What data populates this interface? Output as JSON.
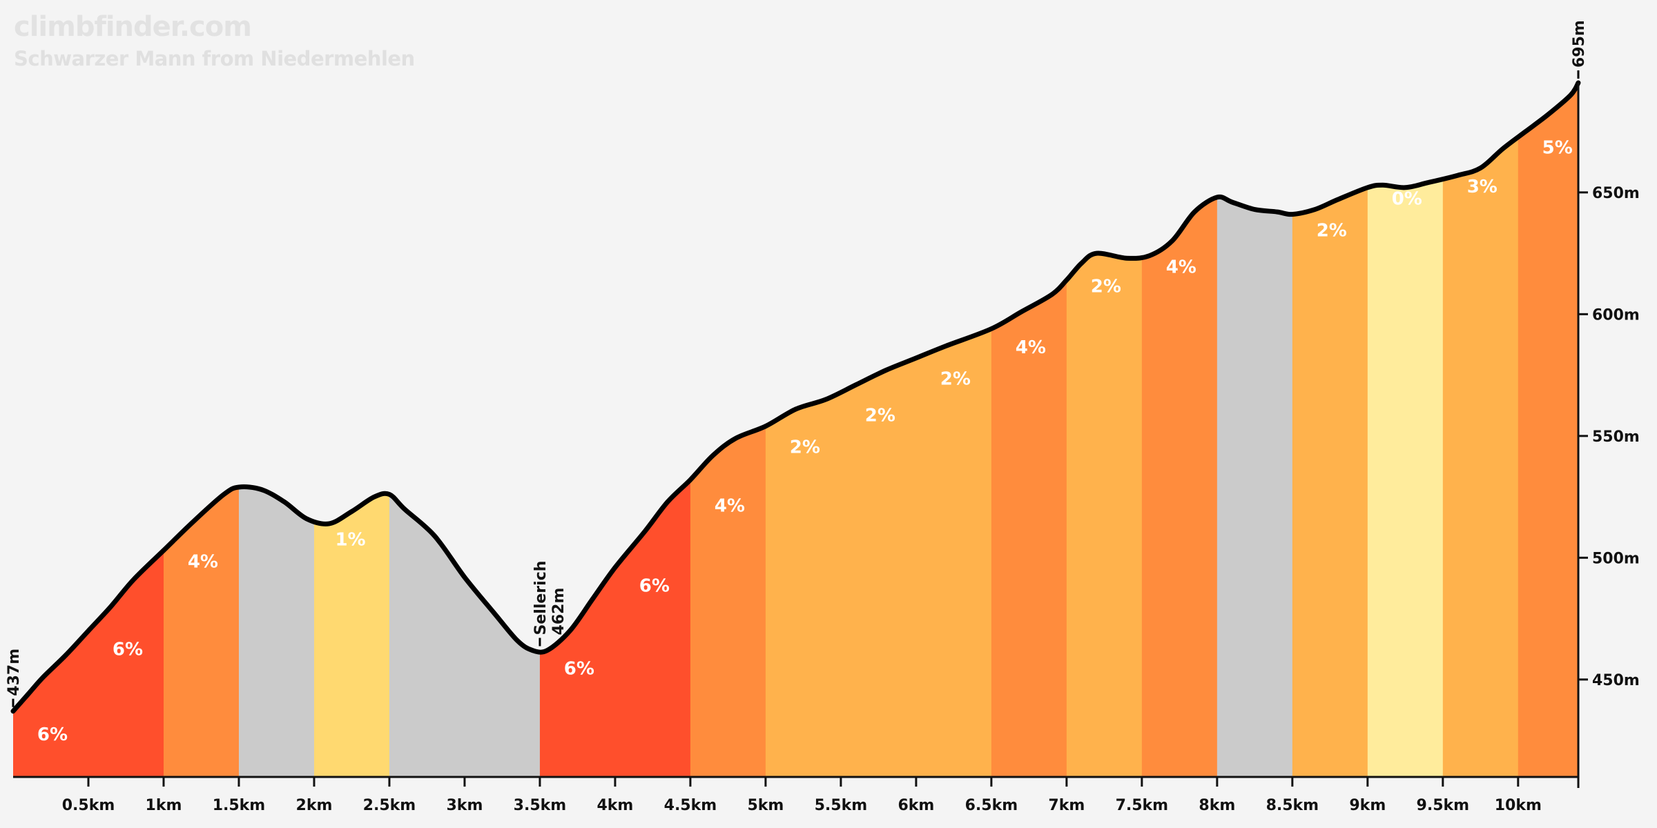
{
  "header": {
    "brand": "climbfinder.com",
    "subtitle": "Schwarzer Mann from Niedermehlen"
  },
  "chart_data": {
    "type": "area",
    "title": "Schwarzer Mann from Niedermehlen",
    "xlabel": "",
    "ylabel": "",
    "x_unit": "km",
    "y_unit": "m",
    "xlim": [
      0,
      10.4
    ],
    "ylim": [
      410,
      712
    ],
    "x_ticks": [
      {
        "value": 0.5,
        "label": "0.5km"
      },
      {
        "value": 1,
        "label": "1km"
      },
      {
        "value": 1.5,
        "label": "1.5km"
      },
      {
        "value": 2,
        "label": "2km"
      },
      {
        "value": 2.5,
        "label": "2.5km"
      },
      {
        "value": 3,
        "label": "3km"
      },
      {
        "value": 3.5,
        "label": "3.5km"
      },
      {
        "value": 4,
        "label": "4km"
      },
      {
        "value": 4.5,
        "label": "4.5km"
      },
      {
        "value": 5,
        "label": "5km"
      },
      {
        "value": 5.5,
        "label": "5.5km"
      },
      {
        "value": 6,
        "label": "6km"
      },
      {
        "value": 6.5,
        "label": "6.5km"
      },
      {
        "value": 7,
        "label": "7km"
      },
      {
        "value": 7.5,
        "label": "7.5km"
      },
      {
        "value": 8,
        "label": "8km"
      },
      {
        "value": 8.5,
        "label": "8.5km"
      },
      {
        "value": 9,
        "label": "9km"
      },
      {
        "value": 9.5,
        "label": "9.5km"
      },
      {
        "value": 10,
        "label": "10km"
      }
    ],
    "y_ticks": [
      {
        "value": 450,
        "label": "450m"
      },
      {
        "value": 500,
        "label": "500m"
      },
      {
        "value": 550,
        "label": "550m"
      },
      {
        "value": 600,
        "label": "600m"
      },
      {
        "value": 650,
        "label": "650m"
      }
    ],
    "profile": [
      [
        0,
        437
      ],
      [
        0.1,
        444
      ],
      [
        0.2,
        451
      ],
      [
        0.35,
        460
      ],
      [
        0.5,
        470
      ],
      [
        0.65,
        480
      ],
      [
        0.8,
        491
      ],
      [
        1,
        503
      ],
      [
        1.2,
        515
      ],
      [
        1.4,
        526
      ],
      [
        1.5,
        529
      ],
      [
        1.65,
        528
      ],
      [
        1.8,
        523
      ],
      [
        1.95,
        516
      ],
      [
        2.1,
        514
      ],
      [
        2.25,
        519
      ],
      [
        2.4,
        525
      ],
      [
        2.5,
        526
      ],
      [
        2.6,
        520
      ],
      [
        2.8,
        509
      ],
      [
        3.0,
        492
      ],
      [
        3.2,
        477
      ],
      [
        3.35,
        466
      ],
      [
        3.45,
        462
      ],
      [
        3.55,
        462
      ],
      [
        3.7,
        470
      ],
      [
        3.85,
        483
      ],
      [
        4.0,
        496
      ],
      [
        4.2,
        511
      ],
      [
        4.35,
        523
      ],
      [
        4.5,
        532
      ],
      [
        4.65,
        542
      ],
      [
        4.8,
        549
      ],
      [
        5.0,
        554
      ],
      [
        5.2,
        561
      ],
      [
        5.4,
        565
      ],
      [
        5.6,
        571
      ],
      [
        5.8,
        577
      ],
      [
        6.0,
        582
      ],
      [
        6.2,
        587
      ],
      [
        6.5,
        594
      ],
      [
        6.7,
        601
      ],
      [
        6.9,
        608
      ],
      [
        7.0,
        614
      ],
      [
        7.1,
        621
      ],
      [
        7.2,
        625
      ],
      [
        7.4,
        623
      ],
      [
        7.55,
        624
      ],
      [
        7.7,
        630
      ],
      [
        7.85,
        642
      ],
      [
        8.0,
        648
      ],
      [
        8.1,
        646
      ],
      [
        8.25,
        643
      ],
      [
        8.4,
        642
      ],
      [
        8.5,
        641
      ],
      [
        8.65,
        643
      ],
      [
        8.8,
        647
      ],
      [
        9.0,
        652
      ],
      [
        9.1,
        653
      ],
      [
        9.25,
        652
      ],
      [
        9.4,
        654
      ],
      [
        9.6,
        657
      ],
      [
        9.75,
        660
      ],
      [
        9.9,
        668
      ],
      [
        10.05,
        675
      ],
      [
        10.2,
        682
      ],
      [
        10.35,
        690
      ],
      [
        10.4,
        695
      ]
    ],
    "segments": [
      {
        "start": 0.0,
        "end": 1.0,
        "grade": "6%",
        "color": "#ff4f2c"
      },
      {
        "start": 1.0,
        "end": 1.5,
        "grade": "4%",
        "color": "#ff8c3d"
      },
      {
        "start": 1.5,
        "end": 2.0,
        "grade": "",
        "color": "#cbcbcb"
      },
      {
        "start": 2.0,
        "end": 2.5,
        "grade": "1%",
        "color": "#ffd970"
      },
      {
        "start": 2.5,
        "end": 3.5,
        "grade": "",
        "color": "#cbcbcb"
      },
      {
        "start": 3.5,
        "end": 4.5,
        "grade": "6%",
        "color": "#ff4f2c"
      },
      {
        "start": 4.5,
        "end": 5.0,
        "grade": "4%",
        "color": "#ff8c3d"
      },
      {
        "start": 5.0,
        "end": 6.5,
        "grade": "2%",
        "color": "#ffb24c"
      },
      {
        "start": 6.5,
        "end": 7.0,
        "grade": "4%",
        "color": "#ff8c3d"
      },
      {
        "start": 7.0,
        "end": 7.5,
        "grade": "2%",
        "color": "#ffb24c"
      },
      {
        "start": 7.5,
        "end": 8.0,
        "grade": "4%",
        "color": "#ff8c3d"
      },
      {
        "start": 8.0,
        "end": 8.5,
        "grade": "",
        "color": "#cbcbcb"
      },
      {
        "start": 8.5,
        "end": 9.0,
        "grade": "2%",
        "color": "#ffb24c"
      },
      {
        "start": 9.0,
        "end": 9.5,
        "grade": "0%",
        "color": "#ffec9c"
      },
      {
        "start": 9.5,
        "end": 10.0,
        "grade": "3%",
        "color": "#ffb24c"
      },
      {
        "start": 10.0,
        "end": 10.4,
        "grade": "5%",
        "color": "#ff8c3d"
      }
    ],
    "grade_labels": [
      {
        "x": 0.16,
        "y": 425,
        "text": "6%"
      },
      {
        "x": 0.66,
        "y": 460,
        "text": "6%"
      },
      {
        "x": 1.16,
        "y": 496,
        "text": "4%"
      },
      {
        "x": 2.14,
        "y": 505,
        "text": "1%"
      },
      {
        "x": 3.66,
        "y": 452,
        "text": "6%"
      },
      {
        "x": 4.16,
        "y": 486,
        "text": "6%"
      },
      {
        "x": 4.66,
        "y": 519,
        "text": "4%"
      },
      {
        "x": 5.16,
        "y": 543,
        "text": "2%"
      },
      {
        "x": 5.66,
        "y": 556,
        "text": "2%"
      },
      {
        "x": 6.16,
        "y": 571,
        "text": "2%"
      },
      {
        "x": 6.66,
        "y": 584,
        "text": "4%"
      },
      {
        "x": 7.16,
        "y": 609,
        "text": "2%"
      },
      {
        "x": 7.66,
        "y": 617,
        "text": "4%"
      },
      {
        "x": 8.66,
        "y": 632,
        "text": "2%"
      },
      {
        "x": 9.16,
        "y": 645,
        "text": "0%"
      },
      {
        "x": 9.66,
        "y": 650,
        "text": "3%"
      },
      {
        "x": 10.16,
        "y": 666,
        "text": "5%"
      }
    ],
    "annotations": [
      {
        "x": 0,
        "y": 437,
        "lines": [
          "437m"
        ]
      },
      {
        "x": 3.5,
        "y": 462,
        "lines": [
          "Sellerich",
          "462m"
        ]
      },
      {
        "x": 10.4,
        "y": 695,
        "lines": [
          "695m"
        ]
      }
    ],
    "colors": {
      "line": "#000000",
      "background": "#f4f4f4",
      "label": "#ffffff",
      "axis": "#111111"
    },
    "grid": false,
    "legend": "none"
  }
}
